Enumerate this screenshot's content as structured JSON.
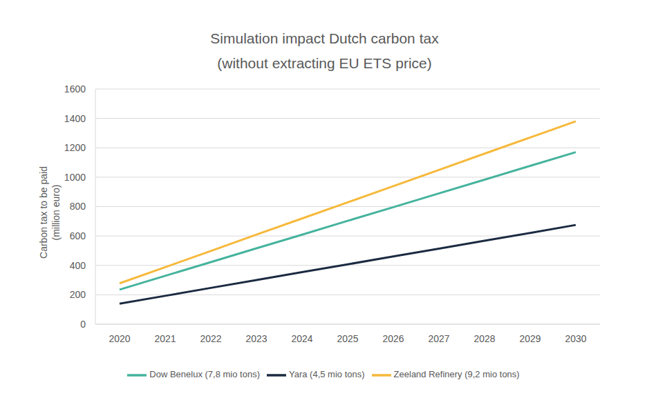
{
  "chart_data": {
    "type": "line",
    "title": "Simulation impact Dutch carbon tax",
    "subtitle": "(without extracting EU ETS price)",
    "y_label": [
      "Carbon tax to be paid",
      "(million euro)"
    ],
    "categories": [
      "2020",
      "2021",
      "2022",
      "2023",
      "2024",
      "2025",
      "2026",
      "2027",
      "2028",
      "2029",
      "2030"
    ],
    "series": [
      {
        "name": "Yara (4,5 mio tons)",
        "color": "#1b2a41",
        "values": [
          140,
          193,
          247,
          300,
          354,
          407,
          461,
          514,
          568,
          621,
          675
        ]
      },
      {
        "name": "Dow Benelux (7,8 mio tons)",
        "color": "#45b39d",
        "values": [
          235,
          329,
          422,
          516,
          609,
          703,
          796,
          890,
          983,
          1077,
          1170
        ]
      },
      {
        "name": "Zeeland Refinery (9,2 mio tons)",
        "color": "#f6b93b",
        "values": [
          278,
          388,
          498,
          609,
          719,
          829,
          939,
          1049,
          1160,
          1270,
          1380
        ]
      }
    ],
    "ylim": [
      0,
      1600
    ],
    "yticks": [
      0,
      200,
      400,
      600,
      800,
      1000,
      1200,
      1400,
      1600
    ],
    "grid": true,
    "legend": "bottom"
  }
}
